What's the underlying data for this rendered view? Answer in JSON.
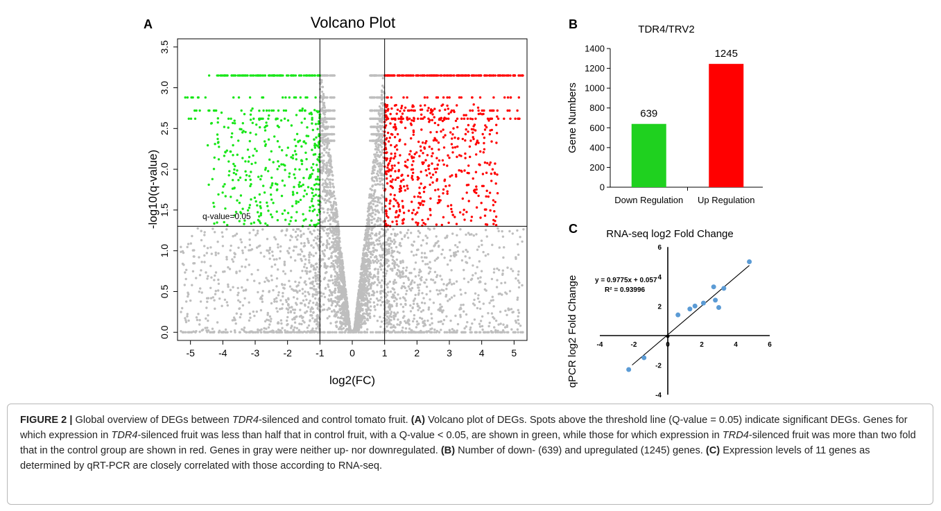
{
  "figure": {
    "panel_letters": [
      "A",
      "B",
      "C"
    ],
    "caption": {
      "label": "FIGURE 2 |",
      "segments": [
        {
          "t": " Global overview of DEGs between "
        },
        {
          "t": "TDR4",
          "i": true
        },
        {
          "t": "-silenced and control tomato fruit. "
        },
        {
          "t": "(A)",
          "b": true
        },
        {
          "t": " Volcano plot of DEGs. Spots above the threshold line (Q-value = 0.05) indicate significant DEGs. Genes for which expression in "
        },
        {
          "t": "TDR4",
          "i": true
        },
        {
          "t": "-silenced fruit was less than half that in control fruit, with a Q-value < 0.05, are shown in green, while those for which expression in "
        },
        {
          "t": "TRD4",
          "i": true
        },
        {
          "t": "-silenced fruit was more than two fold that in the control group are shown in red. Genes in gray were neither up- nor downregulated. "
        },
        {
          "t": "(B)",
          "b": true
        },
        {
          "t": " Number of down- (639) and upregulated (1245) genes. "
        },
        {
          "t": "(C)",
          "b": true
        },
        {
          "t": " Expression levels of 11 genes as determined by qRT-PCR are closely correlated with those according to RNA-seq."
        }
      ]
    },
    "colors": {
      "down": "#19e619",
      "up": "#ff0000",
      "ns": "#bebebe",
      "bar_down": "#1fd11f",
      "bar_up": "#ff0000",
      "scatter_point": "#5b9bd5"
    }
  },
  "chart_data": [
    {
      "id": "A",
      "type": "scatter",
      "title": "Volcano Plot",
      "xlabel": "log2(FC)",
      "ylabel": "-log10(q-value)",
      "xlim": [
        -5.4,
        5.4
      ],
      "ylim": [
        -0.1,
        3.6
      ],
      "xticks": [
        -5,
        -4,
        -3,
        -2,
        -1,
        0,
        1,
        2,
        3,
        4,
        5
      ],
      "yticks": [
        0.0,
        0.5,
        1.0,
        1.5,
        2.0,
        2.5,
        3.0,
        3.5
      ],
      "threshold_lines": {
        "x": [
          -1,
          1
        ],
        "y": 1.3
      },
      "threshold_label": "q-value=0.05",
      "series": [
        {
          "name": "down",
          "color": "#19e619",
          "count": 639,
          "x_range": [
            -5.2,
            -1
          ],
          "y_range": [
            1.3,
            3.15
          ]
        },
        {
          "name": "up",
          "color": "#ff0000",
          "count": 1245,
          "x_range": [
            1,
            5.3
          ],
          "y_range": [
            1.3,
            3.15
          ]
        },
        {
          "name": "not significant",
          "color": "#bebebe",
          "x_range": [
            -5.3,
            5.3
          ],
          "y_range": [
            0,
            3.15
          ]
        }
      ]
    },
    {
      "id": "B",
      "type": "bar",
      "title": "TDR4/TRV2",
      "categories": [
        "Down Regulation",
        "Up Regulation"
      ],
      "values": [
        639,
        1245
      ],
      "value_labels": [
        "639",
        "1245"
      ],
      "colors": [
        "#1fd11f",
        "#ff0000"
      ],
      "xlabel": "",
      "ylabel": "Gene Numbers",
      "ylim": [
        0,
        1400
      ],
      "yticks": [
        0,
        200,
        400,
        600,
        800,
        1000,
        1200,
        1400
      ]
    },
    {
      "id": "C",
      "type": "scatter",
      "title": "RNA-seq log2 Fold Change",
      "xlabel": "",
      "ylabel": "qPCR log2 Fold Change",
      "xlim": [
        -4,
        6
      ],
      "ylim": [
        -4,
        6
      ],
      "xticks": [
        -4,
        -2,
        0,
        2,
        4,
        6
      ],
      "yticks": [
        -4,
        -2,
        2,
        4,
        6
      ],
      "equation": "y = 0.9775x + 0.057",
      "r2": "R² = 0.93996",
      "trendline": {
        "slope": 0.9775,
        "intercept": 0.057,
        "x_range": [
          -2.1,
          4.8
        ]
      },
      "points": [
        {
          "x": -2.3,
          "y": -2.3
        },
        {
          "x": -1.4,
          "y": -1.5
        },
        {
          "x": 0.6,
          "y": 1.4
        },
        {
          "x": 1.3,
          "y": 1.8
        },
        {
          "x": 1.6,
          "y": 2.0
        },
        {
          "x": 2.1,
          "y": 2.2
        },
        {
          "x": 2.7,
          "y": 3.3
        },
        {
          "x": 2.8,
          "y": 2.4
        },
        {
          "x": 3.0,
          "y": 1.9
        },
        {
          "x": 3.3,
          "y": 3.2
        },
        {
          "x": 4.8,
          "y": 5.0
        }
      ]
    }
  ]
}
